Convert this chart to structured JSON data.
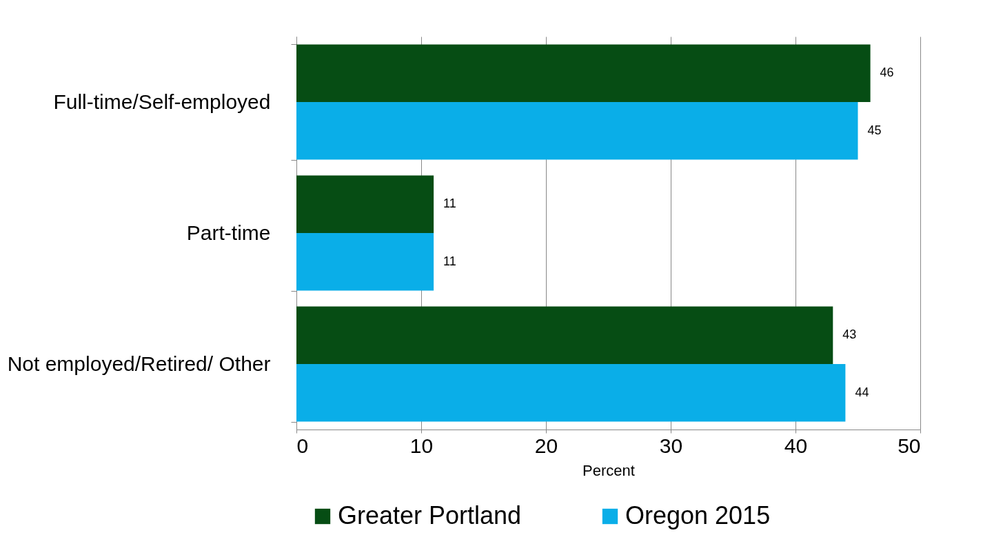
{
  "chart_data": {
    "type": "bar",
    "orientation": "horizontal",
    "xlabel": "Percent",
    "categories": [
      "Full-time/Self-employed",
      "Part-time",
      "Not employed/Retired/ Other"
    ],
    "series": [
      {
        "name": "Greater Portland",
        "color": "#064d14",
        "values": [
          46,
          11,
          43
        ]
      },
      {
        "name": "Oregon 2015",
        "color": "#0aaee8",
        "values": [
          45,
          11,
          44
        ]
      }
    ],
    "xlim": [
      0,
      50
    ],
    "xticks": [
      0,
      10,
      20,
      30,
      40,
      50
    ],
    "grid": "x",
    "legend": "bottom",
    "data_labels": true
  }
}
